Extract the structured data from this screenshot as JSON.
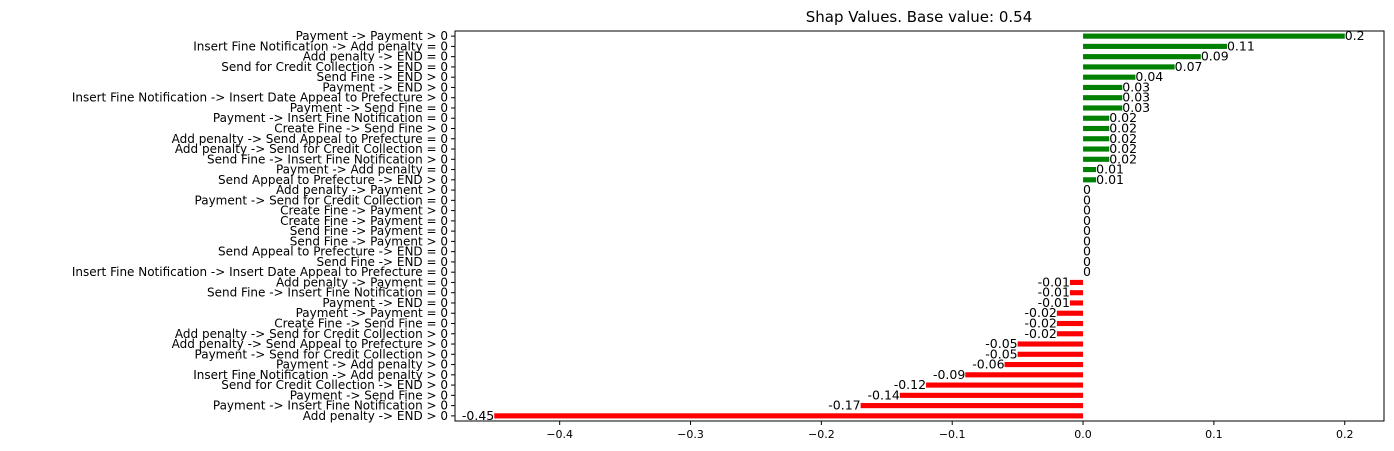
{
  "chart_data": {
    "type": "bar",
    "orientation": "horizontal",
    "title": "Shap Values. Base value: 0.54",
    "xlabel": "",
    "ylabel": "",
    "xlim": [
      -0.48,
      0.23
    ],
    "xticks": [
      "-0.4",
      "-0.3",
      "-0.2",
      "-0.1",
      "0.0",
      "0.1",
      "0.2"
    ],
    "grid": false,
    "colors": {
      "positive": "#008000",
      "negative": "#ff0000"
    },
    "bars": [
      {
        "label": "Payment -> Payment > 0",
        "value": 0.2,
        "text": "0.2"
      },
      {
        "label": "Insert Fine Notification -> Add penalty = 0",
        "value": 0.11,
        "text": "0.11"
      },
      {
        "label": "Add penalty -> END = 0",
        "value": 0.09,
        "text": "0.09"
      },
      {
        "label": "Send for Credit Collection -> END = 0",
        "value": 0.07,
        "text": "0.07"
      },
      {
        "label": "Send Fine -> END > 0",
        "value": 0.04,
        "text": "0.04"
      },
      {
        "label": "Payment -> END > 0",
        "value": 0.03,
        "text": "0.03"
      },
      {
        "label": "Insert Fine Notification -> Insert Date Appeal to Prefecture > 0",
        "value": 0.03,
        "text": "0.03"
      },
      {
        "label": "Payment -> Send Fine = 0",
        "value": 0.03,
        "text": "0.03"
      },
      {
        "label": "Payment -> Insert Fine Notification = 0",
        "value": 0.02,
        "text": "0.02"
      },
      {
        "label": "Create Fine -> Send Fine > 0",
        "value": 0.02,
        "text": "0.02"
      },
      {
        "label": "Add penalty -> Send Appeal to Prefecture = 0",
        "value": 0.02,
        "text": "0.02"
      },
      {
        "label": "Add penalty -> Send for Credit Collection = 0",
        "value": 0.02,
        "text": "0.02"
      },
      {
        "label": "Send Fine -> Insert Fine Notification > 0",
        "value": 0.02,
        "text": "0.02"
      },
      {
        "label": "Payment -> Add penalty = 0",
        "value": 0.01,
        "text": "0.01"
      },
      {
        "label": "Send Appeal to Prefecture -> END > 0",
        "value": 0.01,
        "text": "0.01"
      },
      {
        "label": "Add penalty -> Payment > 0",
        "value": 0,
        "text": "0"
      },
      {
        "label": "Payment -> Send for Credit Collection = 0",
        "value": 0,
        "text": "0"
      },
      {
        "label": "Create Fine -> Payment > 0",
        "value": 0,
        "text": "0"
      },
      {
        "label": "Create Fine -> Payment = 0",
        "value": 0,
        "text": "0"
      },
      {
        "label": "Send Fine -> Payment = 0",
        "value": 0,
        "text": "0"
      },
      {
        "label": "Send Fine -> Payment > 0",
        "value": 0,
        "text": "0"
      },
      {
        "label": "Send Appeal to Prefecture -> END = 0",
        "value": 0,
        "text": "0"
      },
      {
        "label": "Send Fine -> END = 0",
        "value": 0,
        "text": "0"
      },
      {
        "label": "Insert Fine Notification -> Insert Date Appeal to Prefecture = 0",
        "value": 0,
        "text": "0"
      },
      {
        "label": "Add penalty -> Payment = 0",
        "value": -0.01,
        "text": "-0.01"
      },
      {
        "label": "Send Fine -> Insert Fine Notification = 0",
        "value": -0.01,
        "text": "-0.01"
      },
      {
        "label": "Payment -> END = 0",
        "value": -0.01,
        "text": "-0.01"
      },
      {
        "label": "Payment -> Payment = 0",
        "value": -0.02,
        "text": "-0.02"
      },
      {
        "label": "Create Fine -> Send Fine = 0",
        "value": -0.02,
        "text": "-0.02"
      },
      {
        "label": "Add penalty -> Send for Credit Collection > 0",
        "value": -0.02,
        "text": "-0.02"
      },
      {
        "label": "Add penalty -> Send Appeal to Prefecture > 0",
        "value": -0.05,
        "text": "-0.05"
      },
      {
        "label": "Payment -> Send for Credit Collection > 0",
        "value": -0.05,
        "text": "-0.05"
      },
      {
        "label": "Payment -> Add penalty > 0",
        "value": -0.06,
        "text": "-0.06"
      },
      {
        "label": "Insert Fine Notification -> Add penalty > 0",
        "value": -0.09,
        "text": "-0.09"
      },
      {
        "label": "Send for Credit Collection -> END > 0",
        "value": -0.12,
        "text": "-0.12"
      },
      {
        "label": "Payment -> Send Fine > 0",
        "value": -0.14,
        "text": "-0.14"
      },
      {
        "label": "Payment -> Insert Fine Notification > 0",
        "value": -0.17,
        "text": "-0.17"
      },
      {
        "label": "Add penalty -> END > 0",
        "value": -0.45,
        "text": "-0.45"
      }
    ]
  }
}
